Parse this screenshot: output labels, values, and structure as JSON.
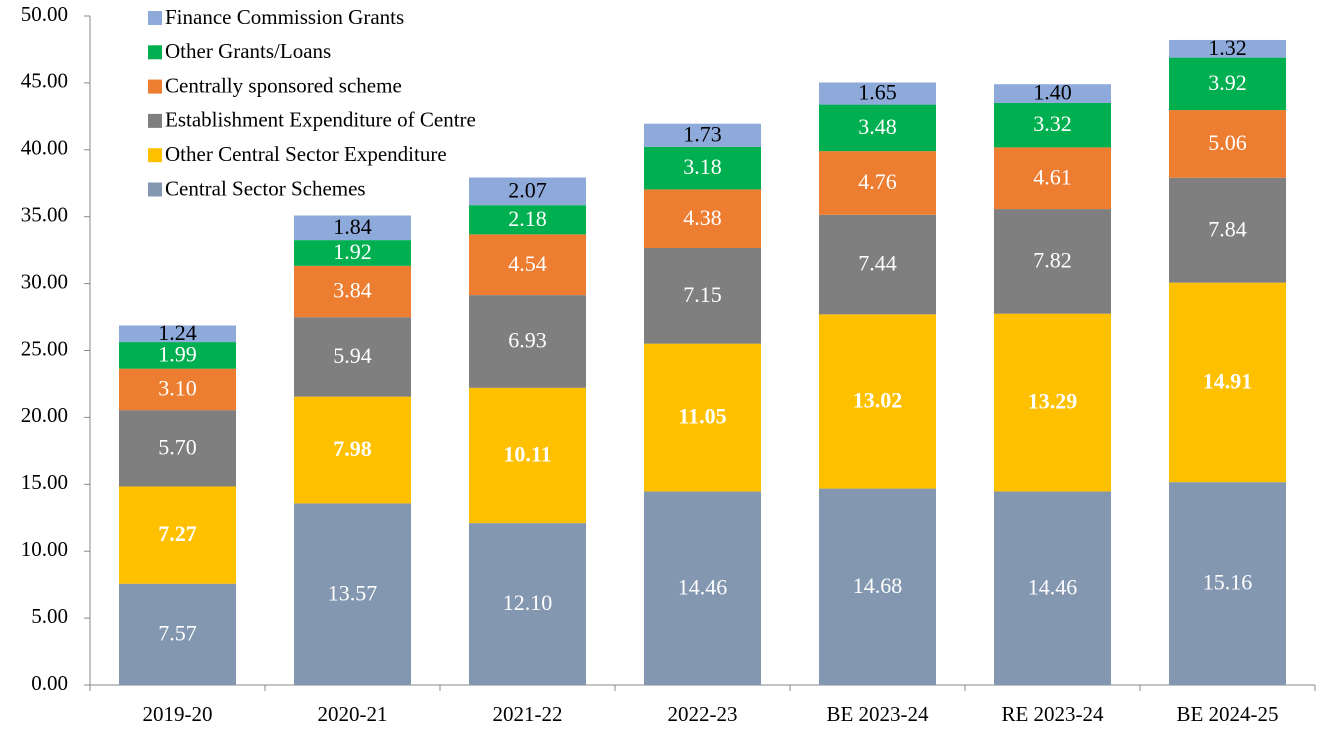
{
  "chart_data": {
    "type": "stacked_bar",
    "categories": [
      "2019-20",
      "2020-21",
      "2021-22",
      "2022-23",
      "BE 2023-24",
      "RE 2023-24",
      "BE 2024-25"
    ],
    "series": [
      {
        "name": "Central Sector Schemes",
        "color": "#8497b0",
        "values": [
          7.57,
          13.57,
          12.1,
          14.46,
          14.68,
          14.46,
          15.16
        ],
        "value_labels": [
          "7.57",
          "13.57",
          "12.10",
          "14.46",
          "14.68",
          "14.46",
          "15.16"
        ]
      },
      {
        "name": "Other Central Sector Expenditure",
        "color": "#ffc000",
        "values": [
          7.27,
          7.98,
          10.11,
          11.05,
          13.02,
          13.29,
          14.91
        ],
        "value_labels": [
          "7.27",
          "7.98",
          "10.11",
          "11.05",
          "13.02",
          "13.29",
          "14.91"
        ]
      },
      {
        "name": "Establishment Expenditure of Centre",
        "color": "#7f7f7f",
        "values": [
          5.7,
          5.94,
          6.93,
          7.15,
          7.44,
          7.82,
          7.84
        ],
        "value_labels": [
          "5.70",
          "5.94",
          "6.93",
          "7.15",
          "7.44",
          "7.82",
          "7.84"
        ]
      },
      {
        "name": "Centrally sponsored scheme",
        "color": "#ed7d31",
        "values": [
          3.1,
          3.84,
          4.54,
          4.38,
          4.76,
          4.61,
          5.06
        ],
        "value_labels": [
          "3.10",
          "3.84",
          "4.54",
          "4.38",
          "4.76",
          "4.61",
          "5.06"
        ]
      },
      {
        "name": "Other Grants/Loans",
        "color": "#00b050",
        "values": [
          1.99,
          1.92,
          2.18,
          3.18,
          3.48,
          3.32,
          3.92
        ],
        "value_labels": [
          "1.99",
          "1.92",
          "2.18",
          "3.18",
          "3.48",
          "3.32",
          "3.92"
        ]
      },
      {
        "name": "Finance Commission Grants",
        "color": "#8eaadb",
        "values": [
          1.24,
          1.84,
          2.07,
          1.73,
          1.65,
          1.4,
          1.32
        ],
        "value_labels": [
          "1.24",
          "1.84",
          "2.07",
          "1.73",
          "1.65",
          "1.40",
          "1.32"
        ]
      }
    ],
    "ylim": [
      0,
      50
    ],
    "yticks": [
      {
        "value": 0,
        "label": "0.00"
      },
      {
        "value": 5,
        "label": "5.00"
      },
      {
        "value": 10,
        "label": "10.00"
      },
      {
        "value": 15,
        "label": "15.00"
      },
      {
        "value": 20,
        "label": "20.00"
      },
      {
        "value": 25,
        "label": "25.00"
      },
      {
        "value": 30,
        "label": "30.00"
      },
      {
        "value": 35,
        "label": "35.00"
      },
      {
        "value": 40,
        "label": "40.00"
      },
      {
        "value": 45,
        "label": "45.00"
      },
      {
        "value": 50,
        "label": "50.00"
      }
    ],
    "legend": "top-left"
  }
}
